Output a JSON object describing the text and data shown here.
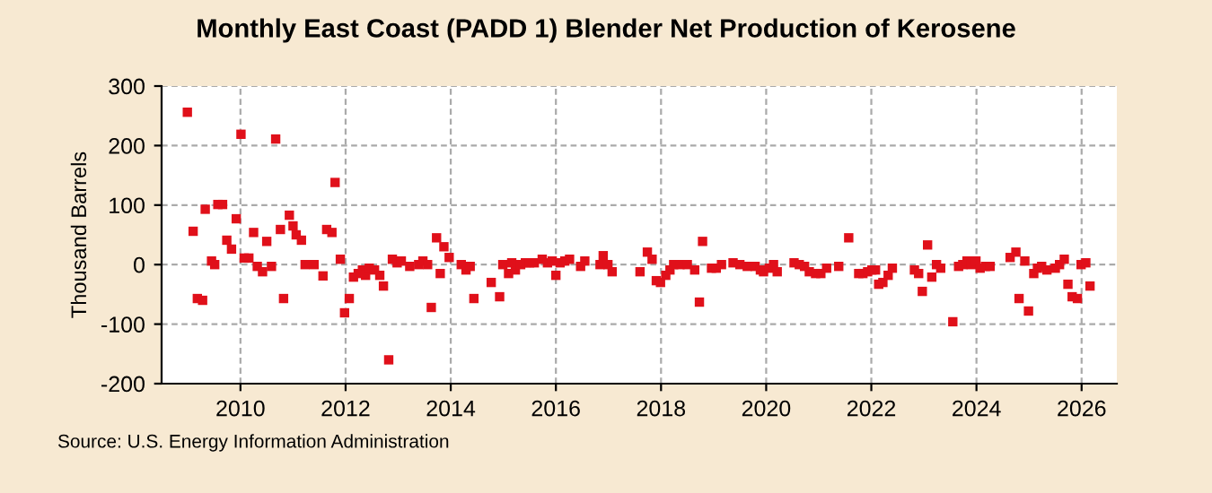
{
  "chart_data": {
    "type": "scatter",
    "title": "Monthly East Coast (PADD 1) Blender Net Production of Kerosene",
    "ylabel": "Thousand Barrels",
    "annotations": [
      "Source: U.S. Energy Information Administration"
    ],
    "marker": "square",
    "grid": true,
    "legend": false,
    "xlim": [
      2008.5,
      2026.67
    ],
    "xticks": [
      2010,
      2012,
      2014,
      2016,
      2018,
      2020,
      2022,
      2024,
      2026
    ],
    "ylim": [
      -200,
      300
    ],
    "yticks": [
      -200,
      -100,
      0,
      100,
      200,
      300
    ],
    "series": [
      {
        "color": "#e0101a",
        "x": [
          2008.99,
          2009.1,
          2009.18,
          2009.28,
          2009.33,
          2009.45,
          2009.51,
          2009.57,
          2009.66,
          2009.74,
          2009.83,
          2009.92,
          2010.01,
          2010.07,
          2010.16,
          2010.25,
          2010.32,
          2010.42,
          2010.5,
          2010.59,
          2010.67,
          2010.76,
          2010.82,
          2010.93,
          2011.0,
          2011.06,
          2011.16,
          2011.23,
          2011.4,
          2011.57,
          2011.64,
          2011.74,
          2011.8,
          2011.9,
          2011.98,
          2012.07,
          2012.15,
          2012.24,
          2012.32,
          2012.38,
          2012.45,
          2012.55,
          2012.65,
          2012.72,
          2012.82,
          2012.89,
          2012.98,
          2013.06,
          2013.22,
          2013.39,
          2013.47,
          2013.56,
          2013.63,
          2013.73,
          2013.8,
          2013.87,
          2013.97,
          2014.2,
          2014.29,
          2014.37,
          2014.44,
          2014.77,
          2014.93,
          2014.99,
          2015.1,
          2015.16,
          2015.23,
          2015.33,
          2015.42,
          2015.5,
          2015.59,
          2015.74,
          2015.84,
          2015.93,
          2016.0,
          2016.08,
          2016.17,
          2016.26,
          2016.47,
          2016.55,
          2016.84,
          2016.9,
          2016.99,
          2017.07,
          2017.6,
          2017.74,
          2017.83,
          2017.91,
          2017.99,
          2018.09,
          2018.17,
          2018.24,
          2018.36,
          2018.5,
          2018.64,
          2018.73,
          2018.79,
          2018.96,
          2019.05,
          2019.15,
          2019.37,
          2019.5,
          2019.64,
          2019.79,
          2019.89,
          2019.95,
          2020.06,
          2020.14,
          2020.21,
          2020.53,
          2020.63,
          2020.73,
          2020.82,
          2020.94,
          2021.04,
          2021.15,
          2021.38,
          2021.57,
          2021.76,
          2021.84,
          2021.93,
          2022.01,
          2022.08,
          2022.14,
          2022.22,
          2022.32,
          2022.4,
          2022.82,
          2022.9,
          2022.97,
          2023.07,
          2023.15,
          2023.24,
          2023.32,
          2023.55,
          2023.66,
          2023.74,
          2023.82,
          2023.9,
          2023.99,
          2024.07,
          2024.17,
          2024.26,
          2024.64,
          2024.75,
          2024.81,
          2024.92,
          2024.99,
          2025.09,
          2025.16,
          2025.24,
          2025.34,
          2025.5,
          2025.58,
          2025.67,
          2025.74,
          2025.82,
          2025.92,
          2025.99,
          2026.08,
          2026.16
        ],
        "values": [
          256,
          56,
          -57,
          -60,
          93,
          6,
          0,
          101,
          101,
          41,
          26,
          77,
          219,
          11,
          11,
          54,
          -3,
          -12,
          39,
          -3,
          211,
          59,
          -57,
          83,
          65,
          50,
          41,
          0,
          0,
          -19,
          59,
          54,
          138,
          9,
          -81,
          -57,
          -21,
          -15,
          -9,
          -18,
          -6,
          -9,
          -18,
          -36,
          -160,
          9,
          3,
          6,
          -3,
          0,
          6,
          0,
          -72,
          45,
          -15,
          30,
          12,
          0,
          -9,
          -3,
          -57,
          -30,
          -54,
          0,
          -15,
          3,
          -9,
          0,
          3,
          3,
          3,
          9,
          3,
          6,
          -18,
          3,
          6,
          9,
          -3,
          6,
          0,
          15,
          0,
          -12,
          -12,
          21,
          9,
          -27,
          -30,
          -18,
          -9,
          0,
          0,
          0,
          -9,
          -63,
          39,
          -6,
          -6,
          0,
          3,
          0,
          -3,
          -3,
          -9,
          -12,
          -6,
          0,
          -12,
          3,
          0,
          -3,
          -12,
          -15,
          -15,
          -6,
          -3,
          45,
          -15,
          -15,
          -12,
          -9,
          -9,
          -33,
          -30,
          -18,
          -6,
          -9,
          -15,
          -45,
          33,
          -21,
          0,
          -6,
          -96,
          -3,
          0,
          6,
          0,
          6,
          -6,
          -3,
          -3,
          12,
          21,
          -57,
          6,
          -78,
          -15,
          -6,
          -3,
          -9,
          -6,
          0,
          9,
          -33,
          -54,
          -57,
          0,
          3,
          -36
        ]
      }
    ]
  }
}
